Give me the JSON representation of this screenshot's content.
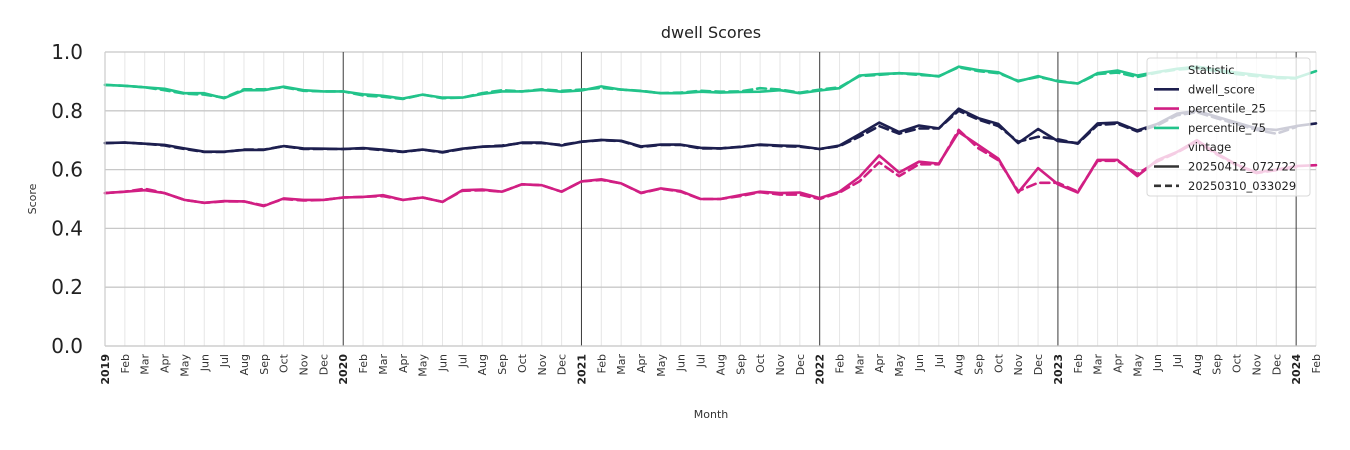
{
  "chart_data": {
    "type": "line",
    "title": "dwell Scores",
    "xlabel": "Month",
    "ylabel": "Score",
    "ylim": [
      0.0,
      1.0
    ],
    "yticks": [
      "0.0",
      "0.2",
      "0.4",
      "0.6",
      "0.8",
      "1.0"
    ],
    "x_start": "2019-01",
    "x_end": "2024-02",
    "x_tick_labels": [
      "2019",
      "Feb",
      "Mar",
      "Apr",
      "May",
      "Jun",
      "Jul",
      "Aug",
      "Sep",
      "Oct",
      "Nov",
      "Dec",
      "2020",
      "Feb",
      "Mar",
      "Apr",
      "May",
      "Jun",
      "Jul",
      "Aug",
      "Sep",
      "Oct",
      "Nov",
      "Dec",
      "2021",
      "Feb",
      "Mar",
      "Apr",
      "May",
      "Jun",
      "Jul",
      "Aug",
      "Sep",
      "Oct",
      "Nov",
      "Dec",
      "2022",
      "Feb",
      "Mar",
      "Apr",
      "May",
      "Jun",
      "Jul",
      "Aug",
      "Sep",
      "Oct",
      "Nov",
      "Dec",
      "2023",
      "Feb",
      "Mar",
      "Apr",
      "May",
      "Jun",
      "Jul",
      "Aug",
      "Sep",
      "Oct",
      "Nov",
      "Dec",
      "2024",
      "Feb"
    ],
    "grid": true,
    "legend_position": "top-right",
    "legend": {
      "statistic_title": "Statistic",
      "statistic_entries": [
        "dwell_score",
        "percentile_25",
        "percentile_75"
      ],
      "vintage_title": "vintage",
      "vintage_entries": [
        "20250412_072722",
        "20250310_033029"
      ]
    },
    "colors": {
      "dwell_score": "#1d1f4f",
      "percentile_25": "#d11f83",
      "percentile_75": "#22c38a"
    },
    "series": [
      {
        "name": "percentile_75",
        "vintage": "20250412_072722",
        "values": [
          0.888,
          0.885,
          0.88,
          0.875,
          0.86,
          0.86,
          0.843,
          0.87,
          0.87,
          0.882,
          0.87,
          0.866,
          0.866,
          0.856,
          0.851,
          0.842,
          0.855,
          0.845,
          0.845,
          0.857,
          0.866,
          0.866,
          0.871,
          0.865,
          0.869,
          0.883,
          0.872,
          0.867,
          0.86,
          0.86,
          0.865,
          0.862,
          0.864,
          0.865,
          0.87,
          0.86,
          0.869,
          0.877,
          0.92,
          0.925,
          0.928,
          0.925,
          0.917,
          0.95,
          0.938,
          0.931,
          0.9,
          0.918,
          0.9,
          0.893,
          0.928,
          0.937,
          0.92,
          0.932,
          0.943,
          0.95,
          0.94,
          0.93,
          0.922,
          0.915,
          0.912,
          0.935
        ]
      },
      {
        "name": "percentile_75",
        "vintage": "20250310_033029",
        "values": [
          0.888,
          0.885,
          0.88,
          0.87,
          0.858,
          0.855,
          0.845,
          0.873,
          0.873,
          0.88,
          0.868,
          0.866,
          0.866,
          0.852,
          0.848,
          0.84,
          0.855,
          0.843,
          0.845,
          0.86,
          0.87,
          0.866,
          0.873,
          0.868,
          0.872,
          0.878,
          0.872,
          0.868,
          0.86,
          0.862,
          0.868,
          0.865,
          0.866,
          0.877,
          0.872,
          0.862,
          0.872,
          0.88,
          0.918,
          0.922,
          0.928,
          0.922,
          0.918,
          0.948,
          0.935,
          0.928,
          0.902,
          0.915,
          0.902,
          0.893,
          0.925,
          0.93,
          0.915,
          0.93,
          0.94,
          0.945,
          0.935,
          0.925,
          0.918,
          0.912,
          0.91
        ]
      },
      {
        "name": "dwell_score",
        "vintage": "20250412_072722",
        "values": [
          0.69,
          0.692,
          0.688,
          0.684,
          0.672,
          0.661,
          0.661,
          0.667,
          0.667,
          0.68,
          0.672,
          0.671,
          0.67,
          0.673,
          0.668,
          0.661,
          0.668,
          0.66,
          0.671,
          0.678,
          0.68,
          0.692,
          0.692,
          0.682,
          0.695,
          0.701,
          0.698,
          0.679,
          0.685,
          0.685,
          0.674,
          0.672,
          0.677,
          0.685,
          0.682,
          0.68,
          0.67,
          0.682,
          0.72,
          0.76,
          0.728,
          0.75,
          0.74,
          0.807,
          0.775,
          0.755,
          0.69,
          0.738,
          0.697,
          0.69,
          0.757,
          0.76,
          0.733,
          0.755,
          0.79,
          0.8,
          0.78,
          0.76,
          0.74,
          0.735,
          0.748,
          0.757
        ]
      },
      {
        "name": "dwell_score",
        "vintage": "20250310_033029",
        "values": [
          0.69,
          0.692,
          0.688,
          0.682,
          0.67,
          0.66,
          0.66,
          0.668,
          0.668,
          0.68,
          0.67,
          0.67,
          0.67,
          0.672,
          0.666,
          0.66,
          0.668,
          0.658,
          0.67,
          0.678,
          0.682,
          0.69,
          0.69,
          0.684,
          0.695,
          0.7,
          0.697,
          0.677,
          0.684,
          0.684,
          0.672,
          0.672,
          0.678,
          0.684,
          0.68,
          0.678,
          0.67,
          0.68,
          0.712,
          0.748,
          0.722,
          0.74,
          0.74,
          0.8,
          0.77,
          0.748,
          0.695,
          0.712,
          0.703,
          0.688,
          0.752,
          0.756,
          0.73,
          0.75,
          0.785,
          0.795,
          0.775,
          0.755,
          0.735,
          0.722,
          0.745
        ]
      },
      {
        "name": "percentile_25",
        "vintage": "20250412_072722",
        "values": [
          0.52,
          0.525,
          0.53,
          0.52,
          0.497,
          0.487,
          0.493,
          0.492,
          0.476,
          0.502,
          0.497,
          0.497,
          0.505,
          0.507,
          0.513,
          0.497,
          0.505,
          0.49,
          0.53,
          0.532,
          0.525,
          0.55,
          0.547,
          0.525,
          0.56,
          0.567,
          0.553,
          0.521,
          0.536,
          0.527,
          0.5,
          0.5,
          0.513,
          0.525,
          0.52,
          0.522,
          0.503,
          0.525,
          0.575,
          0.648,
          0.59,
          0.627,
          0.62,
          0.728,
          0.683,
          0.637,
          0.522,
          0.605,
          0.55,
          0.522,
          0.633,
          0.633,
          0.578,
          0.632,
          0.66,
          0.7,
          0.655,
          0.617,
          0.59,
          0.6,
          0.612,
          0.615
        ]
      },
      {
        "name": "percentile_25",
        "vintage": "20250310_033029",
        "values": [
          0.52,
          0.525,
          0.535,
          0.52,
          0.497,
          0.487,
          0.492,
          0.492,
          0.478,
          0.5,
          0.495,
          0.497,
          0.505,
          0.507,
          0.51,
          0.497,
          0.505,
          0.49,
          0.528,
          0.53,
          0.525,
          0.55,
          0.547,
          0.525,
          0.56,
          0.565,
          0.553,
          0.52,
          0.535,
          0.525,
          0.5,
          0.5,
          0.51,
          0.523,
          0.515,
          0.515,
          0.5,
          0.522,
          0.56,
          0.625,
          0.578,
          0.618,
          0.618,
          0.735,
          0.672,
          0.632,
          0.527,
          0.555,
          0.555,
          0.525,
          0.63,
          0.63,
          0.585,
          0.628,
          0.658,
          0.695,
          0.652,
          0.615,
          0.588,
          0.598,
          0.608
        ]
      }
    ]
  }
}
